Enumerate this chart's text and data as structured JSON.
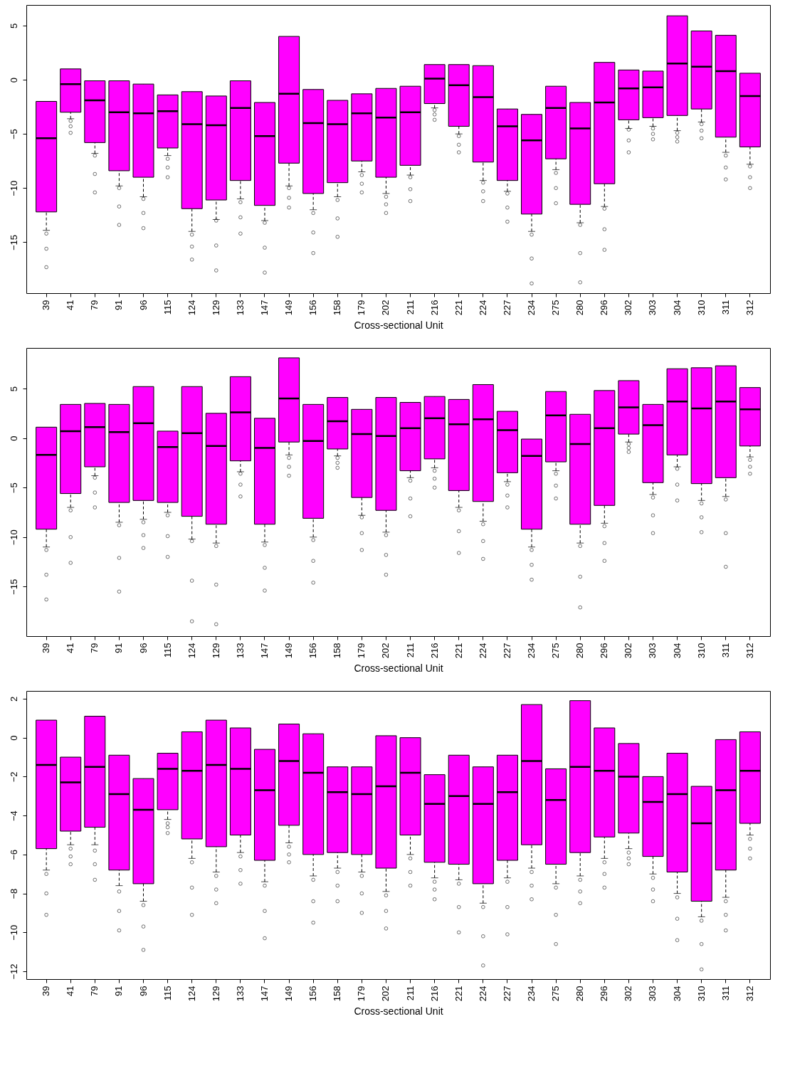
{
  "chart_data": [
    {
      "type": "box",
      "xlabel": "Cross-sectional Unit",
      "categories": [
        "39",
        "41",
        "79",
        "91",
        "96",
        "115",
        "124",
        "129",
        "133",
        "147",
        "149",
        "156",
        "158",
        "179",
        "202",
        "211",
        "216",
        "221",
        "224",
        "227",
        "234",
        "275",
        "280",
        "296",
        "302",
        "303",
        "304",
        "310",
        "311",
        "312"
      ],
      "ylim": [
        -19.7,
        6.9
      ],
      "yticks": [
        -15,
        -10,
        -5,
        0,
        5
      ],
      "grid": false,
      "series": [
        {
          "color": "#ff00ff",
          "boxes": [
            {
              "low": -13.9,
              "q1": -12.2,
              "median": -5.4,
              "q3": -2.0,
              "high": -2.0,
              "outliers": [
                -14.2,
                -15.6,
                -17.3
              ]
            },
            {
              "low": -3.6,
              "q1": -3.0,
              "median": -0.4,
              "q3": 1.0,
              "high": 1.0,
              "outliers": [
                -3.8,
                -4.3,
                -4.9
              ]
            },
            {
              "low": -6.8,
              "q1": -5.8,
              "median": -1.9,
              "q3": -0.1,
              "high": -0.1,
              "outliers": [
                -7.0,
                -8.7,
                -10.4
              ]
            },
            {
              "low": -9.8,
              "q1": -8.4,
              "median": -3.0,
              "q3": -0.1,
              "high": -0.1,
              "outliers": [
                -10.0,
                -11.7,
                -13.4
              ]
            },
            {
              "low": -10.8,
              "q1": -9.0,
              "median": -3.1,
              "q3": -0.4,
              "high": -0.4,
              "outliers": [
                -11.0,
                -12.3,
                -13.7
              ]
            },
            {
              "low": -7.0,
              "q1": -6.3,
              "median": -2.9,
              "q3": -1.4,
              "high": -1.4,
              "outliers": [
                -7.3,
                -8.1,
                -9.0
              ]
            },
            {
              "low": -14.0,
              "q1": -11.9,
              "median": -4.1,
              "q3": -1.1,
              "high": -1.1,
              "outliers": [
                -14.3,
                -15.4,
                -16.6
              ]
            },
            {
              "low": -12.9,
              "q1": -11.1,
              "median": -4.2,
              "q3": -1.5,
              "high": -1.5,
              "outliers": [
                -13.0,
                -15.3,
                -17.6
              ]
            },
            {
              "low": -11.0,
              "q1": -9.3,
              "median": -2.6,
              "q3": -0.1,
              "high": -0.1,
              "outliers": [
                -11.3,
                -12.7,
                -14.2
              ]
            },
            {
              "low": -13.0,
              "q1": -11.6,
              "median": -5.2,
              "q3": -2.1,
              "high": -2.1,
              "outliers": [
                -13.2,
                -15.5,
                -17.8
              ]
            },
            {
              "low": -9.8,
              "q1": -7.7,
              "median": -1.3,
              "q3": 4.0,
              "high": 4.0,
              "outliers": [
                -10.0,
                -10.9,
                -11.8
              ]
            },
            {
              "low": -12.0,
              "q1": -10.5,
              "median": -4.0,
              "q3": -0.9,
              "high": -0.9,
              "outliers": [
                -12.3,
                -14.1,
                -16.0
              ]
            },
            {
              "low": -10.8,
              "q1": -9.5,
              "median": -4.1,
              "q3": -1.9,
              "high": -1.9,
              "outliers": [
                -11.1,
                -12.8,
                -14.5
              ]
            },
            {
              "low": -8.5,
              "q1": -7.5,
              "median": -3.1,
              "q3": -1.3,
              "high": -1.3,
              "outliers": [
                -8.8,
                -9.6,
                -10.4
              ]
            },
            {
              "low": -10.5,
              "q1": -9.0,
              "median": -3.5,
              "q3": -0.8,
              "high": -0.8,
              "outliers": [
                -10.8,
                -11.5,
                -12.3
              ]
            },
            {
              "low": -8.8,
              "q1": -7.9,
              "median": -3.0,
              "q3": -0.6,
              "high": -0.6,
              "outliers": [
                -9.0,
                -10.1,
                -11.2
              ]
            },
            {
              "low": -2.6,
              "q1": -2.2,
              "median": 0.1,
              "q3": 1.4,
              "high": 1.4,
              "outliers": [
                -2.8,
                -3.2,
                -3.7
              ]
            },
            {
              "low": -5.0,
              "q1": -4.3,
              "median": -0.5,
              "q3": 1.4,
              "high": 1.4,
              "outliers": [
                -5.2,
                -6.0,
                -6.7
              ]
            },
            {
              "low": -9.3,
              "q1": -7.6,
              "median": -1.6,
              "q3": 1.3,
              "high": 1.3,
              "outliers": [
                -9.5,
                -10.3,
                -11.2
              ]
            },
            {
              "low": -10.3,
              "q1": -9.3,
              "median": -4.3,
              "q3": -2.7,
              "high": -2.7,
              "outliers": [
                -10.5,
                -11.8,
                -13.1
              ]
            },
            {
              "low": -14.0,
              "q1": -12.4,
              "median": -5.6,
              "q3": -3.2,
              "high": -3.2,
              "outliers": [
                -14.3,
                -16.5,
                -18.8
              ]
            },
            {
              "low": -8.3,
              "q1": -7.3,
              "median": -2.6,
              "q3": -0.6,
              "high": -0.6,
              "outliers": [
                -8.6,
                -10.0,
                -11.4
              ]
            },
            {
              "low": -13.2,
              "q1": -11.5,
              "median": -4.5,
              "q3": -2.1,
              "high": -2.1,
              "outliers": [
                -13.4,
                -16.0,
                -18.7
              ]
            },
            {
              "low": -11.7,
              "q1": -9.6,
              "median": -2.1,
              "q3": 1.6,
              "high": 1.6,
              "outliers": [
                -11.9,
                -13.8,
                -15.7
              ]
            },
            {
              "low": -4.5,
              "q1": -3.7,
              "median": -0.8,
              "q3": 0.9,
              "high": 0.9,
              "outliers": [
                -4.6,
                -5.6,
                -6.7
              ]
            },
            {
              "low": -4.3,
              "q1": -3.5,
              "median": -0.7,
              "q3": 0.8,
              "high": 0.8,
              "outliers": [
                -4.5,
                -5.0,
                -5.5
              ]
            },
            {
              "low": -4.7,
              "q1": -3.3,
              "median": 1.5,
              "q3": 5.9,
              "high": 5.9,
              "outliers": [
                -4.9,
                -5.3,
                -5.7
              ]
            },
            {
              "low": -3.9,
              "q1": -2.7,
              "median": 1.2,
              "q3": 4.5,
              "high": 4.5,
              "outliers": [
                -4.1,
                -4.7,
                -5.4
              ]
            },
            {
              "low": -6.7,
              "q1": -5.3,
              "median": 0.8,
              "q3": 4.1,
              "high": 4.1,
              "outliers": [
                -7.0,
                -8.1,
                -9.2
              ]
            },
            {
              "low": -7.8,
              "q1": -6.2,
              "median": -1.5,
              "q3": 0.6,
              "high": 0.6,
              "outliers": [
                -8.0,
                -9.0,
                -10.0
              ]
            }
          ]
        }
      ]
    },
    {
      "type": "box",
      "xlabel": "Cross-sectional Unit",
      "categories": [
        "39",
        "41",
        "79",
        "91",
        "96",
        "115",
        "124",
        "129",
        "133",
        "147",
        "149",
        "156",
        "158",
        "179",
        "202",
        "211",
        "216",
        "221",
        "224",
        "227",
        "234",
        "275",
        "280",
        "296",
        "302",
        "303",
        "304",
        "310",
        "311",
        "312"
      ],
      "ylim": [
        -20.0,
        9.1
      ],
      "yticks": [
        -15,
        -10,
        -5,
        0,
        5
      ],
      "grid": false,
      "series": [
        {
          "color": "#ff00ff",
          "boxes": [
            {
              "low": -11.0,
              "q1": -9.2,
              "median": -1.7,
              "q3": 1.1,
              "high": 1.1,
              "outliers": [
                -11.3,
                -13.8,
                -16.3
              ]
            },
            {
              "low": -7.0,
              "q1": -5.6,
              "median": 0.7,
              "q3": 3.4,
              "high": 3.4,
              "outliers": [
                -7.3,
                -10.0,
                -12.6
              ]
            },
            {
              "low": -3.8,
              "q1": -2.9,
              "median": 1.1,
              "q3": 3.5,
              "high": 3.5,
              "outliers": [
                -4.0,
                -5.5,
                -7.0
              ]
            },
            {
              "low": -8.5,
              "q1": -6.5,
              "median": 0.6,
              "q3": 3.4,
              "high": 3.4,
              "outliers": [
                -8.8,
                -12.1,
                -15.5
              ]
            },
            {
              "low": -8.2,
              "q1": -6.3,
              "median": 1.5,
              "q3": 5.2,
              "high": 5.2,
              "outliers": [
                -8.5,
                -9.8,
                -11.1
              ]
            },
            {
              "low": -7.5,
              "q1": -6.5,
              "median": -0.9,
              "q3": 0.7,
              "high": 0.7,
              "outliers": [
                -7.8,
                -9.9,
                -12.0
              ]
            },
            {
              "low": -10.2,
              "q1": -7.9,
              "median": 0.5,
              "q3": 5.2,
              "high": 5.2,
              "outliers": [
                -10.4,
                -14.4,
                -18.5
              ]
            },
            {
              "low": -10.6,
              "q1": -8.7,
              "median": -0.8,
              "q3": 2.5,
              "high": 2.5,
              "outliers": [
                -10.9,
                -14.8,
                -18.8
              ]
            },
            {
              "low": -3.4,
              "q1": -2.3,
              "median": 2.6,
              "q3": 6.2,
              "high": 6.2,
              "outliers": [
                -3.6,
                -4.7,
                -5.9
              ]
            },
            {
              "low": -10.5,
              "q1": -8.7,
              "median": -1.0,
              "q3": 2.0,
              "high": 2.0,
              "outliers": [
                -10.8,
                -13.1,
                -15.4
              ]
            },
            {
              "low": -1.7,
              "q1": -0.4,
              "median": 4.0,
              "q3": 8.1,
              "high": 8.1,
              "outliers": [
                -2.0,
                -2.9,
                -3.8
              ]
            },
            {
              "low": -10.0,
              "q1": -8.1,
              "median": -0.3,
              "q3": 3.4,
              "high": 3.4,
              "outliers": [
                -10.3,
                -12.4,
                -14.6
              ]
            },
            {
              "low": -1.8,
              "q1": -1.1,
              "median": 1.7,
              "q3": 4.1,
              "high": 4.1,
              "outliers": [
                -2.0,
                -2.5,
                -3.0
              ]
            },
            {
              "low": -7.8,
              "q1": -6.0,
              "median": 0.4,
              "q3": 2.9,
              "high": 2.9,
              "outliers": [
                -8.0,
                -9.6,
                -11.3
              ]
            },
            {
              "low": -9.5,
              "q1": -7.3,
              "median": 0.2,
              "q3": 4.1,
              "high": 4.1,
              "outliers": [
                -9.8,
                -11.8,
                -13.8
              ]
            },
            {
              "low": -4.0,
              "q1": -3.3,
              "median": 1.0,
              "q3": 3.6,
              "high": 3.6,
              "outliers": [
                -4.3,
                -6.1,
                -7.9
              ]
            },
            {
              "low": -3.0,
              "q1": -2.1,
              "median": 2.0,
              "q3": 4.2,
              "high": 4.2,
              "outliers": [
                -3.3,
                -4.1,
                -5.0
              ]
            },
            {
              "low": -7.0,
              "q1": -5.3,
              "median": 1.4,
              "q3": 3.9,
              "high": 3.9,
              "outliers": [
                -7.3,
                -9.4,
                -11.6
              ]
            },
            {
              "low": -8.4,
              "q1": -6.4,
              "median": 1.9,
              "q3": 5.4,
              "high": 5.4,
              "outliers": [
                -8.7,
                -10.4,
                -12.2
              ]
            },
            {
              "low": -4.4,
              "q1": -3.5,
              "median": 0.8,
              "q3": 2.7,
              "high": 2.7,
              "outliers": [
                -4.7,
                -5.8,
                -7.0
              ]
            },
            {
              "low": -11.0,
              "q1": -9.2,
              "median": -1.8,
              "q3": -0.1,
              "high": -0.1,
              "outliers": [
                -11.3,
                -12.8,
                -14.3
              ]
            },
            {
              "low": -3.3,
              "q1": -2.4,
              "median": 2.3,
              "q3": 4.7,
              "high": 4.7,
              "outliers": [
                -3.6,
                -4.8,
                -6.1
              ]
            },
            {
              "low": -10.6,
              "q1": -8.7,
              "median": -0.6,
              "q3": 2.4,
              "high": 2.4,
              "outliers": [
                -10.9,
                -14.0,
                -17.1
              ]
            },
            {
              "low": -8.6,
              "q1": -6.8,
              "median": 1.0,
              "q3": 4.8,
              "high": 4.8,
              "outliers": [
                -8.9,
                -10.6,
                -12.4
              ]
            },
            {
              "low": -0.4,
              "q1": 0.4,
              "median": 3.1,
              "q3": 5.8,
              "high": 5.8,
              "outliers": [
                -0.6,
                -1.0,
                -1.4
              ]
            },
            {
              "low": -5.7,
              "q1": -4.5,
              "median": 1.3,
              "q3": 3.4,
              "high": 3.4,
              "outliers": [
                -6.0,
                -7.8,
                -9.6
              ]
            },
            {
              "low": -2.9,
              "q1": -1.7,
              "median": 3.7,
              "q3": 7.0,
              "high": 7.0,
              "outliers": [
                -3.1,
                -4.7,
                -6.3
              ]
            },
            {
              "low": -6.3,
              "q1": -4.6,
              "median": 3.0,
              "q3": 7.1,
              "high": 7.1,
              "outliers": [
                -6.6,
                -8.0,
                -9.5
              ]
            },
            {
              "low": -5.9,
              "q1": -4.0,
              "median": 3.7,
              "q3": 7.3,
              "high": 7.3,
              "outliers": [
                -6.2,
                -9.6,
                -13.0
              ]
            },
            {
              "low": -1.9,
              "q1": -0.8,
              "median": 2.9,
              "q3": 5.1,
              "high": 5.1,
              "outliers": [
                -2.2,
                -2.9,
                -3.6
              ]
            }
          ]
        }
      ]
    },
    {
      "type": "box",
      "xlabel": "Cross-sectional Unit",
      "categories": [
        "39",
        "41",
        "79",
        "91",
        "96",
        "115",
        "124",
        "129",
        "133",
        "147",
        "149",
        "156",
        "158",
        "179",
        "202",
        "211",
        "216",
        "221",
        "224",
        "227",
        "234",
        "275",
        "280",
        "296",
        "302",
        "303",
        "304",
        "310",
        "311",
        "312"
      ],
      "ylim": [
        -12.4,
        2.4
      ],
      "yticks": [
        -12,
        -10,
        -8,
        -6,
        -4,
        -2,
        0,
        2
      ],
      "grid": false,
      "series": [
        {
          "color": "#ff00ff",
          "boxes": [
            {
              "low": -6.8,
              "q1": -5.7,
              "median": -1.4,
              "q3": 0.9,
              "high": 0.9,
              "outliers": [
                -7.0,
                -8.0,
                -9.1
              ]
            },
            {
              "low": -5.5,
              "q1": -4.8,
              "median": -2.3,
              "q3": -1.0,
              "high": -1.0,
              "outliers": [
                -5.7,
                -6.1,
                -6.5
              ]
            },
            {
              "low": -5.5,
              "q1": -4.6,
              "median": -1.5,
              "q3": 1.1,
              "high": 1.1,
              "outliers": [
                -5.8,
                -6.5,
                -7.3
              ]
            },
            {
              "low": -7.6,
              "q1": -6.8,
              "median": -2.9,
              "q3": -0.9,
              "high": -0.9,
              "outliers": [
                -7.9,
                -8.9,
                -9.9
              ]
            },
            {
              "low": -8.4,
              "q1": -7.5,
              "median": -3.7,
              "q3": -2.1,
              "high": -2.1,
              "outliers": [
                -8.6,
                -9.7,
                -10.9
              ]
            },
            {
              "low": -4.2,
              "q1": -3.7,
              "median": -1.6,
              "q3": -0.8,
              "high": -0.8,
              "outliers": [
                -4.4,
                -4.6,
                -4.9
              ]
            },
            {
              "low": -6.2,
              "q1": -5.2,
              "median": -1.7,
              "q3": 0.3,
              "high": 0.3,
              "outliers": [
                -6.4,
                -7.7,
                -9.1
              ]
            },
            {
              "low": -6.9,
              "q1": -5.6,
              "median": -1.4,
              "q3": 0.9,
              "high": 0.9,
              "outliers": [
                -7.1,
                -7.8,
                -8.5
              ]
            },
            {
              "low": -5.9,
              "q1": -5.0,
              "median": -1.6,
              "q3": 0.5,
              "high": 0.5,
              "outliers": [
                -6.1,
                -6.8,
                -7.5
              ]
            },
            {
              "low": -7.4,
              "q1": -6.3,
              "median": -2.7,
              "q3": -0.6,
              "high": -0.6,
              "outliers": [
                -7.6,
                -8.9,
                -10.3
              ]
            },
            {
              "low": -5.4,
              "q1": -4.5,
              "median": -1.2,
              "q3": 0.7,
              "high": 0.7,
              "outliers": [
                -5.6,
                -6.0,
                -6.4
              ]
            },
            {
              "low": -7.1,
              "q1": -6.0,
              "median": -1.8,
              "q3": 0.2,
              "high": 0.2,
              "outliers": [
                -7.3,
                -8.4,
                -9.5
              ]
            },
            {
              "low": -6.7,
              "q1": -5.9,
              "median": -2.8,
              "q3": -1.5,
              "high": -1.5,
              "outliers": [
                -6.9,
                -7.6,
                -8.4
              ]
            },
            {
              "low": -6.9,
              "q1": -6.0,
              "median": -2.9,
              "q3": -1.5,
              "high": -1.5,
              "outliers": [
                -7.1,
                -8.0,
                -9.0
              ]
            },
            {
              "low": -7.9,
              "q1": -6.7,
              "median": -2.5,
              "q3": 0.1,
              "high": 0.1,
              "outliers": [
                -8.1,
                -8.9,
                -9.8
              ]
            },
            {
              "low": -6.0,
              "q1": -5.0,
              "median": -1.8,
              "q3": 0.0,
              "high": 0.0,
              "outliers": [
                -6.2,
                -6.9,
                -7.6
              ]
            },
            {
              "low": -7.2,
              "q1": -6.4,
              "median": -3.4,
              "q3": -1.9,
              "high": -1.9,
              "outliers": [
                -7.4,
                -7.8,
                -8.3
              ]
            },
            {
              "low": -7.3,
              "q1": -6.5,
              "median": -3.0,
              "q3": -0.9,
              "high": -0.9,
              "outliers": [
                -7.5,
                -8.7,
                -10.0
              ]
            },
            {
              "low": -8.5,
              "q1": -7.5,
              "median": -3.4,
              "q3": -1.5,
              "high": -1.5,
              "outliers": [
                -8.7,
                -10.2,
                -11.7
              ]
            },
            {
              "low": -7.2,
              "q1": -6.3,
              "median": -2.8,
              "q3": -0.9,
              "high": -0.9,
              "outliers": [
                -7.4,
                -8.7,
                -10.1
              ]
            },
            {
              "low": -6.7,
              "q1": -5.5,
              "median": -1.2,
              "q3": 1.7,
              "high": 1.7,
              "outliers": [
                -6.9,
                -7.6,
                -8.3
              ]
            },
            {
              "low": -7.5,
              "q1": -6.5,
              "median": -3.2,
              "q3": -1.6,
              "high": -1.6,
              "outliers": [
                -7.7,
                -9.1,
                -10.6
              ]
            },
            {
              "low": -7.1,
              "q1": -5.9,
              "median": -1.5,
              "q3": 1.9,
              "high": 1.9,
              "outliers": [
                -7.3,
                -7.9,
                -8.5
              ]
            },
            {
              "low": -6.2,
              "q1": -5.1,
              "median": -1.7,
              "q3": 0.5,
              "high": 0.5,
              "outliers": [
                -6.4,
                -7.0,
                -7.7
              ]
            },
            {
              "low": -5.7,
              "q1": -4.9,
              "median": -2.0,
              "q3": -0.3,
              "high": -0.3,
              "outliers": [
                -5.9,
                -6.2,
                -6.5
              ]
            },
            {
              "low": -7.0,
              "q1": -6.1,
              "median": -3.3,
              "q3": -2.0,
              "high": -2.0,
              "outliers": [
                -7.2,
                -7.8,
                -8.4
              ]
            },
            {
              "low": -8.0,
              "q1": -6.9,
              "median": -2.9,
              "q3": -0.8,
              "high": -0.8,
              "outliers": [
                -8.2,
                -9.3,
                -10.4
              ]
            },
            {
              "low": -9.2,
              "q1": -8.4,
              "median": -4.4,
              "q3": -2.5,
              "high": -2.5,
              "outliers": [
                -9.4,
                -10.6,
                -11.9
              ]
            },
            {
              "low": -8.2,
              "q1": -6.8,
              "median": -2.7,
              "q3": -0.1,
              "high": -0.1,
              "outliers": [
                -8.4,
                -9.1,
                -9.9
              ]
            },
            {
              "low": -5.0,
              "q1": -4.4,
              "median": -1.7,
              "q3": 0.3,
              "high": 0.3,
              "outliers": [
                -5.2,
                -5.7,
                -6.2
              ]
            }
          ]
        }
      ]
    }
  ]
}
